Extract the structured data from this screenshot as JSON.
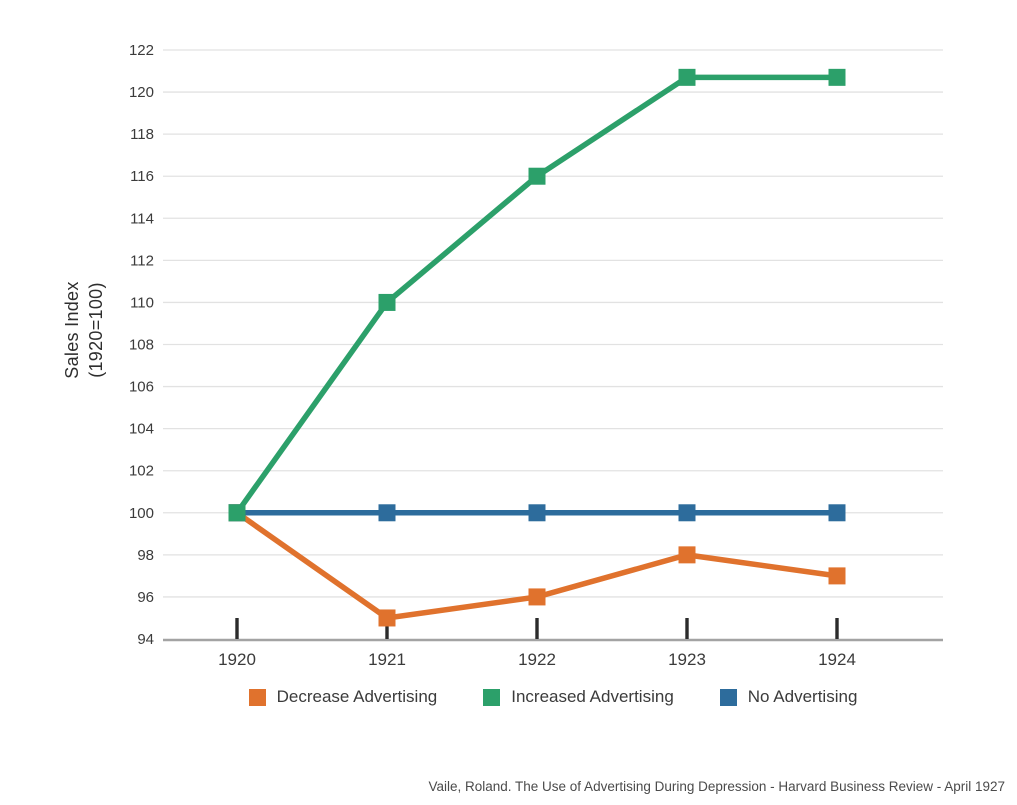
{
  "chart_data": {
    "type": "line",
    "title": "",
    "x": [
      "1920",
      "1921",
      "1922",
      "1923",
      "1924"
    ],
    "series": [
      {
        "name": "Decrease Advertising",
        "color": "#E0722D",
        "values": [
          100,
          95,
          96,
          98,
          97
        ]
      },
      {
        "name": "Increased Advertising",
        "color": "#2CA06A",
        "values": [
          100,
          110,
          116,
          120.7,
          120.7
        ]
      },
      {
        "name": "No Advertising",
        "color": "#2D6C9C",
        "values": [
          100,
          100,
          100,
          100,
          100
        ]
      }
    ],
    "xlabel": "",
    "ylabel": "Sales Index (1920=100)",
    "ylabel_lines": [
      "Sales Index",
      "(1920=100)"
    ],
    "ylim": [
      94,
      122
    ],
    "yticks": [
      94,
      96,
      98,
      100,
      102,
      104,
      106,
      108,
      110,
      112,
      114,
      116,
      118,
      120,
      122
    ],
    "grid": true,
    "legend_position": "bottom",
    "marker": "square"
  },
  "colors": {
    "gridline": "#E2E2E2",
    "axis_line": "#A3A3A3",
    "tick_mark": "#2B2B2B",
    "tick_text": "#3B3B3B"
  },
  "footer": {
    "source": "Vaile, Roland. The Use of Advertising During Depression - Harvard Business Review - April 1927"
  }
}
